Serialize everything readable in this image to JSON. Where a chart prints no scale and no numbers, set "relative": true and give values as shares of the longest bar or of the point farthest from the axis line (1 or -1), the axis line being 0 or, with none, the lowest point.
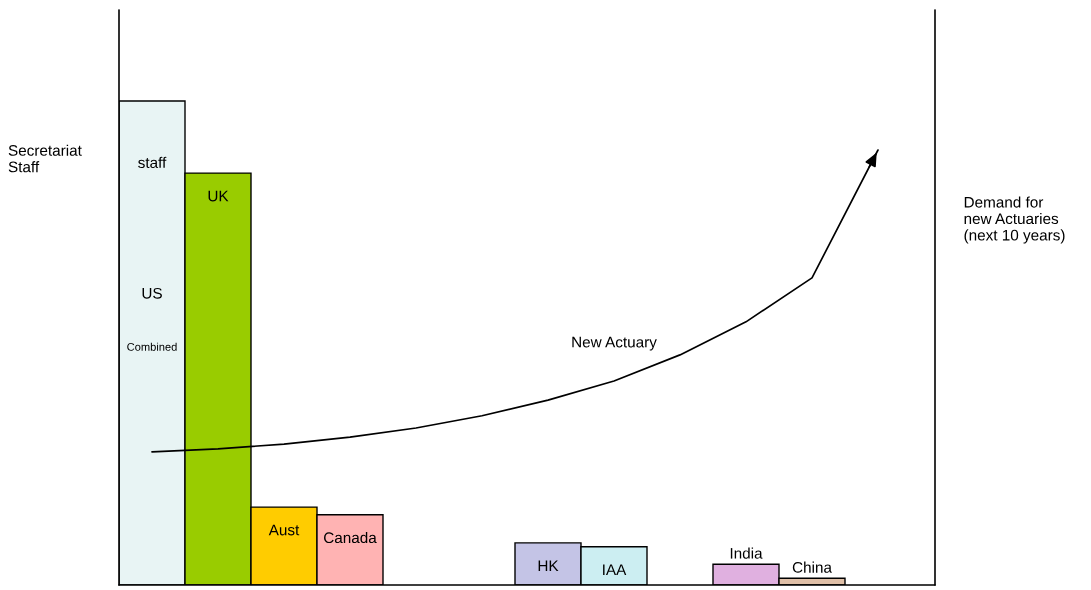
{
  "chart_data": {
    "type": "bar",
    "relative": true,
    "categories": [
      "US",
      "UK",
      "Aust",
      "Canada",
      null,
      null,
      "HK",
      "IAA",
      null,
      "India",
      "China",
      null
    ],
    "values": [
      1,
      0.851,
      0.161,
      0.145,
      null,
      null,
      0.087,
      0.079,
      null,
      0.043,
      0.014,
      null
    ],
    "colors": [
      "#e8f4f4",
      "#99cc00",
      "#ffcc00",
      "#ffb3b3",
      null,
      null,
      "#c4c4e6",
      "#cceef2",
      null,
      "#e0b0e0",
      "#e0c0a8",
      null
    ],
    "series": [
      {
        "name": "New Actuary",
        "type": "line",
        "axis": "y2",
        "color": "#000000",
        "values": [
          0.306,
          0.313,
          0.324,
          0.34,
          0.361,
          0.389,
          0.425,
          0.469,
          0.529,
          0.605,
          0.706,
          1
        ]
      }
    ],
    "ylabel": "Secretariat\nStaff",
    "y2label": "Demand for\nnew Actuaries\n(next 10 years)",
    "annotations": [
      "staff",
      "Combined"
    ]
  }
}
